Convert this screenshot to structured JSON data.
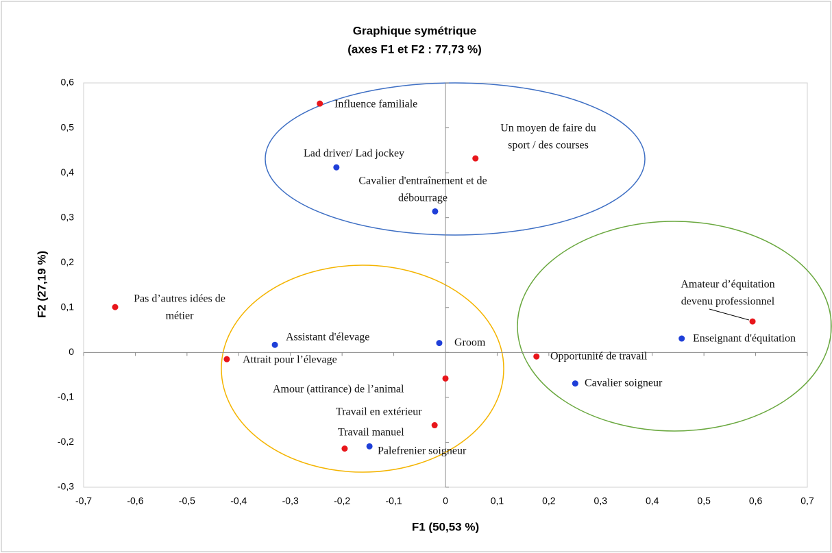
{
  "chart_data": {
    "type": "scatter",
    "title": [
      "Graphique symétrique",
      "(axes F1 et F2 : 77,73 %)"
    ],
    "x_label": "F1 (50,53 %)",
    "y_label": "F2 (27,19 %)",
    "xlim": [
      -0.7,
      0.7
    ],
    "ylim": [
      -0.3,
      0.6
    ],
    "xticks": [
      {
        "value": -0.7,
        "label": "-0,7"
      },
      {
        "value": -0.6,
        "label": "-0,6"
      },
      {
        "value": -0.5,
        "label": "-0,5"
      },
      {
        "value": -0.4,
        "label": "-0,4"
      },
      {
        "value": -0.3,
        "label": "-0,3"
      },
      {
        "value": -0.2,
        "label": "-0,2"
      },
      {
        "value": -0.1,
        "label": "-0,1"
      },
      0,
      {
        "value": 0.1,
        "label": "0,1"
      },
      {
        "value": 0.2,
        "label": "0,2"
      },
      {
        "value": 0.3,
        "label": "0,3"
      },
      {
        "value": 0.4,
        "label": "0,4"
      },
      {
        "value": 0.5,
        "label": "0,5"
      },
      {
        "value": 0.6,
        "label": "0,6"
      },
      {
        "value": 0.7,
        "label": "0,7"
      }
    ],
    "yticks": [
      {
        "value": -0.3,
        "label": "-0,3"
      },
      {
        "value": -0.2,
        "label": "-0,2"
      },
      {
        "value": -0.1,
        "label": "-0,1"
      },
      0,
      {
        "value": 0.1,
        "label": "0,1"
      },
      {
        "value": 0.2,
        "label": "0,2"
      },
      {
        "value": 0.3,
        "label": "0,3"
      },
      {
        "value": 0.4,
        "label": "0,4"
      },
      {
        "value": 0.5,
        "label": "0,5"
      },
      {
        "value": 0.6,
        "label": "0,6"
      }
    ],
    "series": [
      {
        "color": "#e8161b",
        "x": [
          -0.243,
          0.058,
          -0.639,
          -0.423,
          0.0,
          -0.021,
          -0.195,
          0.176,
          0.594
        ],
        "values": [
          0.554,
          0.432,
          0.101,
          -0.015,
          -0.058,
          -0.162,
          -0.214,
          -0.009,
          0.069
        ],
        "labels": [
          [
            "Influence familiale"
          ],
          [
            "Un moyen de faire du",
            "sport / des courses"
          ],
          [
            "Pas d’autres idées de",
            "métier"
          ],
          [
            "Attrait pour l’élevage"
          ],
          [
            "Amour (attirance) de l’animal"
          ],
          [
            "Travail en extérieur"
          ],
          [
            "Travail manuel"
          ],
          [
            "Opportunité de travail"
          ],
          [
            "Amateur d’équitation",
            "devenu professionnel"
          ]
        ]
      },
      {
        "color": "#1f3fd8",
        "x": [
          -0.211,
          -0.02,
          -0.33,
          -0.012,
          -0.147,
          0.251,
          0.457
        ],
        "values": [
          0.412,
          0.314,
          0.017,
          0.021,
          -0.209,
          -0.069,
          0.031
        ],
        "labels": [
          [
            "Lad driver/ Lad jockey"
          ],
          [
            "Cavalier d'entraînement et de",
            "débourrage"
          ],
          [
            "Assistant d'élevage"
          ],
          [
            "Groom"
          ],
          [
            "Palefrenier soigneur"
          ],
          [
            "Cavalier soigneur"
          ],
          [
            "Enseignant d'équitation"
          ]
        ]
      }
    ]
  }
}
